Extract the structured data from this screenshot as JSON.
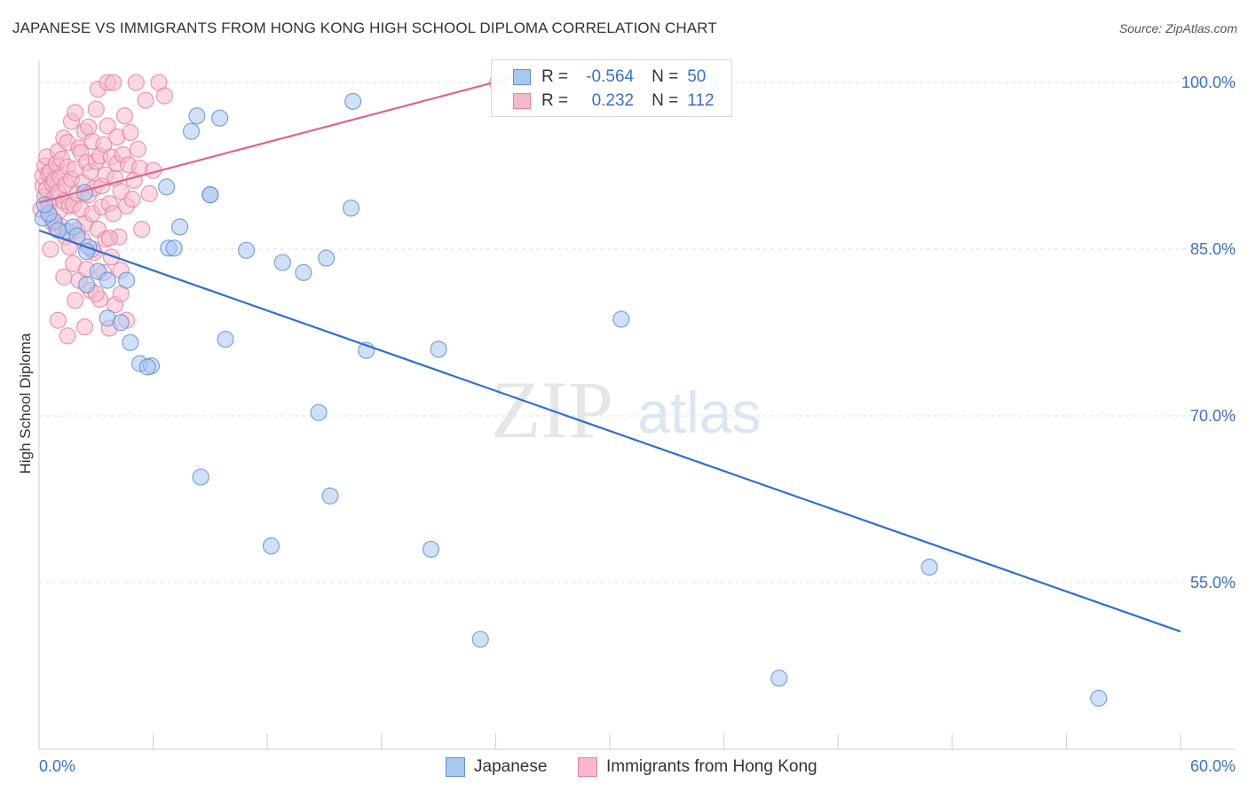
{
  "title": "JAPANESE VS IMMIGRANTS FROM HONG KONG HIGH SCHOOL DIPLOMA CORRELATION CHART",
  "source": "Source: ZipAtlas.com",
  "watermark": {
    "zip": "ZIP",
    "atlas": "atlas"
  },
  "legend_stats": {
    "japanese": {
      "r_label": "R =",
      "r_value": "-0.564",
      "n_label": "N =",
      "n_value": "50"
    },
    "hongkong": {
      "r_label": "R =",
      "r_value": "0.232",
      "n_label": "N =",
      "n_value": "112"
    }
  },
  "colors": {
    "blue_fill": "#a9c8f0",
    "blue_stroke": "#5b8fd6",
    "blue_line": "#2f6fcf",
    "pink_fill": "#f6b9cc",
    "pink_stroke": "#e77fa0",
    "pink_line": "#e0628d",
    "axis_label_blue": "#3a70c8",
    "grid": "#dddddd"
  },
  "chart_data": {
    "type": "scatter",
    "xlabel": "",
    "ylabel": "High School Diploma",
    "xlim": [
      0,
      60
    ],
    "ylim": [
      40,
      102
    ],
    "x_tick_labels": {
      "left": "0.0%",
      "right": "60.0%"
    },
    "y_ticks": [
      {
        "value": 100,
        "label": "100.0%"
      },
      {
        "value": 85,
        "label": "85.0%"
      },
      {
        "value": 70,
        "label": "70.0%"
      },
      {
        "value": 55,
        "label": "55.0%"
      }
    ],
    "legend_position": "bottom",
    "series": [
      {
        "name": "Japanese",
        "trendline": [
          [
            0,
            86.7
          ],
          [
            60,
            50.6
          ]
        ],
        "points": [
          [
            0.2,
            87.8
          ],
          [
            0.8,
            87.5
          ],
          [
            1.5,
            86.6
          ],
          [
            1.8,
            87.0
          ],
          [
            0.5,
            88.2
          ],
          [
            2.6,
            85.2
          ],
          [
            2.4,
            90.1
          ],
          [
            2.5,
            84.8
          ],
          [
            3.1,
            83.0
          ],
          [
            2.5,
            81.8
          ],
          [
            3.6,
            82.2
          ],
          [
            4.6,
            82.2
          ],
          [
            3.6,
            78.8
          ],
          [
            4.3,
            78.4
          ],
          [
            4.8,
            76.6
          ],
          [
            5.3,
            74.7
          ],
          [
            5.9,
            74.5
          ],
          [
            5.7,
            74.4
          ],
          [
            6.7,
            90.6
          ],
          [
            6.8,
            85.1
          ],
          [
            7.1,
            85.1
          ],
          [
            7.4,
            87.0
          ],
          [
            8.0,
            95.6
          ],
          [
            8.3,
            97.0
          ],
          [
            9.0,
            89.9
          ],
          [
            9.0,
            89.9
          ],
          [
            9.5,
            96.8
          ],
          [
            9.8,
            76.9
          ],
          [
            10.9,
            84.9
          ],
          [
            12.8,
            83.8
          ],
          [
            13.9,
            82.9
          ],
          [
            14.7,
            70.3
          ],
          [
            15.3,
            62.8
          ],
          [
            15.1,
            84.2
          ],
          [
            16.4,
            88.7
          ],
          [
            16.5,
            98.3
          ],
          [
            17.2,
            75.9
          ],
          [
            12.2,
            58.3
          ],
          [
            8.5,
            64.5
          ],
          [
            20.6,
            58.0
          ],
          [
            21.0,
            76.0
          ],
          [
            23.2,
            49.9
          ],
          [
            30.6,
            78.7
          ],
          [
            35.2,
            100.0
          ],
          [
            46.8,
            56.4
          ],
          [
            38.9,
            46.4
          ],
          [
            55.7,
            44.6
          ],
          [
            1.0,
            86.7
          ],
          [
            0.3,
            89.0
          ],
          [
            2.0,
            86.2
          ]
        ]
      },
      {
        "name": "Immigrants from Hong Kong",
        "trendline": [
          [
            0,
            89.2
          ],
          [
            25,
            100.5
          ]
        ],
        "points": [
          [
            0.1,
            88.6
          ],
          [
            0.2,
            90.7
          ],
          [
            0.2,
            91.6
          ],
          [
            0.3,
            92.5
          ],
          [
            0.3,
            89.7
          ],
          [
            0.4,
            93.3
          ],
          [
            0.4,
            90.4
          ],
          [
            0.5,
            91.8
          ],
          [
            0.5,
            89.0
          ],
          [
            0.6,
            92.0
          ],
          [
            0.6,
            88.0
          ],
          [
            0.7,
            90.9
          ],
          [
            0.7,
            87.4
          ],
          [
            0.8,
            89.6
          ],
          [
            0.8,
            91.2
          ],
          [
            0.9,
            92.7
          ],
          [
            0.9,
            86.9
          ],
          [
            1.0,
            90.1
          ],
          [
            1.0,
            93.8
          ],
          [
            1.1,
            88.5
          ],
          [
            1.1,
            91.5
          ],
          [
            1.2,
            87.0
          ],
          [
            1.2,
            93.1
          ],
          [
            1.3,
            89.3
          ],
          [
            1.3,
            95.0
          ],
          [
            1.4,
            90.8
          ],
          [
            1.4,
            86.1
          ],
          [
            1.5,
            92.4
          ],
          [
            1.5,
            94.6
          ],
          [
            1.6,
            88.9
          ],
          [
            1.6,
            85.2
          ],
          [
            1.7,
            91.3
          ],
          [
            1.7,
            96.5
          ],
          [
            1.8,
            89.0
          ],
          [
            1.8,
            83.7
          ],
          [
            1.9,
            92.2
          ],
          [
            1.9,
            97.3
          ],
          [
            2.0,
            90.0
          ],
          [
            2.0,
            86.7
          ],
          [
            2.1,
            82.2
          ],
          [
            2.1,
            94.1
          ],
          [
            2.2,
            88.6
          ],
          [
            2.2,
            93.7
          ],
          [
            2.3,
            91.0
          ],
          [
            2.3,
            85.8
          ],
          [
            2.4,
            95.6
          ],
          [
            2.4,
            87.3
          ],
          [
            2.5,
            92.8
          ],
          [
            2.5,
            83.2
          ],
          [
            2.6,
            89.9
          ],
          [
            2.6,
            96.0
          ],
          [
            2.7,
            81.3
          ],
          [
            2.7,
            92.0
          ],
          [
            2.8,
            94.7
          ],
          [
            2.8,
            88.2
          ],
          [
            2.9,
            90.5
          ],
          [
            2.9,
            84.7
          ],
          [
            3.0,
            97.6
          ],
          [
            3.0,
            92.9
          ],
          [
            3.1,
            86.8
          ],
          [
            3.1,
            99.4
          ],
          [
            3.2,
            93.4
          ],
          [
            3.2,
            80.5
          ],
          [
            3.3,
            88.8
          ],
          [
            3.3,
            90.7
          ],
          [
            3.4,
            94.4
          ],
          [
            3.4,
            82.9
          ],
          [
            3.5,
            91.7
          ],
          [
            3.5,
            85.9
          ],
          [
            3.6,
            96.1
          ],
          [
            3.6,
            100.0
          ],
          [
            3.7,
            89.1
          ],
          [
            3.7,
            77.9
          ],
          [
            3.8,
            93.3
          ],
          [
            3.8,
            84.3
          ],
          [
            3.9,
            88.2
          ],
          [
            3.9,
            100.0
          ],
          [
            4.0,
            91.4
          ],
          [
            4.0,
            80.0
          ],
          [
            4.1,
            95.1
          ],
          [
            4.1,
            92.7
          ],
          [
            4.2,
            86.1
          ],
          [
            4.3,
            90.2
          ],
          [
            4.3,
            83.1
          ],
          [
            4.4,
            93.5
          ],
          [
            4.5,
            97.0
          ],
          [
            4.6,
            88.9
          ],
          [
            4.6,
            78.6
          ],
          [
            4.7,
            92.6
          ],
          [
            4.8,
            95.5
          ],
          [
            4.9,
            89.5
          ],
          [
            5.0,
            91.2
          ],
          [
            5.1,
            100.0
          ],
          [
            5.2,
            94.0
          ],
          [
            5.3,
            92.3
          ],
          [
            5.4,
            86.8
          ],
          [
            5.6,
            98.4
          ],
          [
            5.8,
            90.0
          ],
          [
            6.0,
            92.1
          ],
          [
            6.3,
            100.0
          ],
          [
            6.6,
            98.8
          ],
          [
            0.6,
            85.0
          ],
          [
            1.0,
            78.6
          ],
          [
            1.5,
            77.2
          ],
          [
            1.9,
            80.4
          ],
          [
            2.4,
            78.0
          ],
          [
            3.0,
            81.0
          ],
          [
            4.3,
            81.0
          ],
          [
            2.8,
            85.0
          ],
          [
            1.3,
            82.5
          ],
          [
            3.7,
            86.0
          ],
          [
            24.1,
            100.0
          ]
        ]
      }
    ]
  }
}
